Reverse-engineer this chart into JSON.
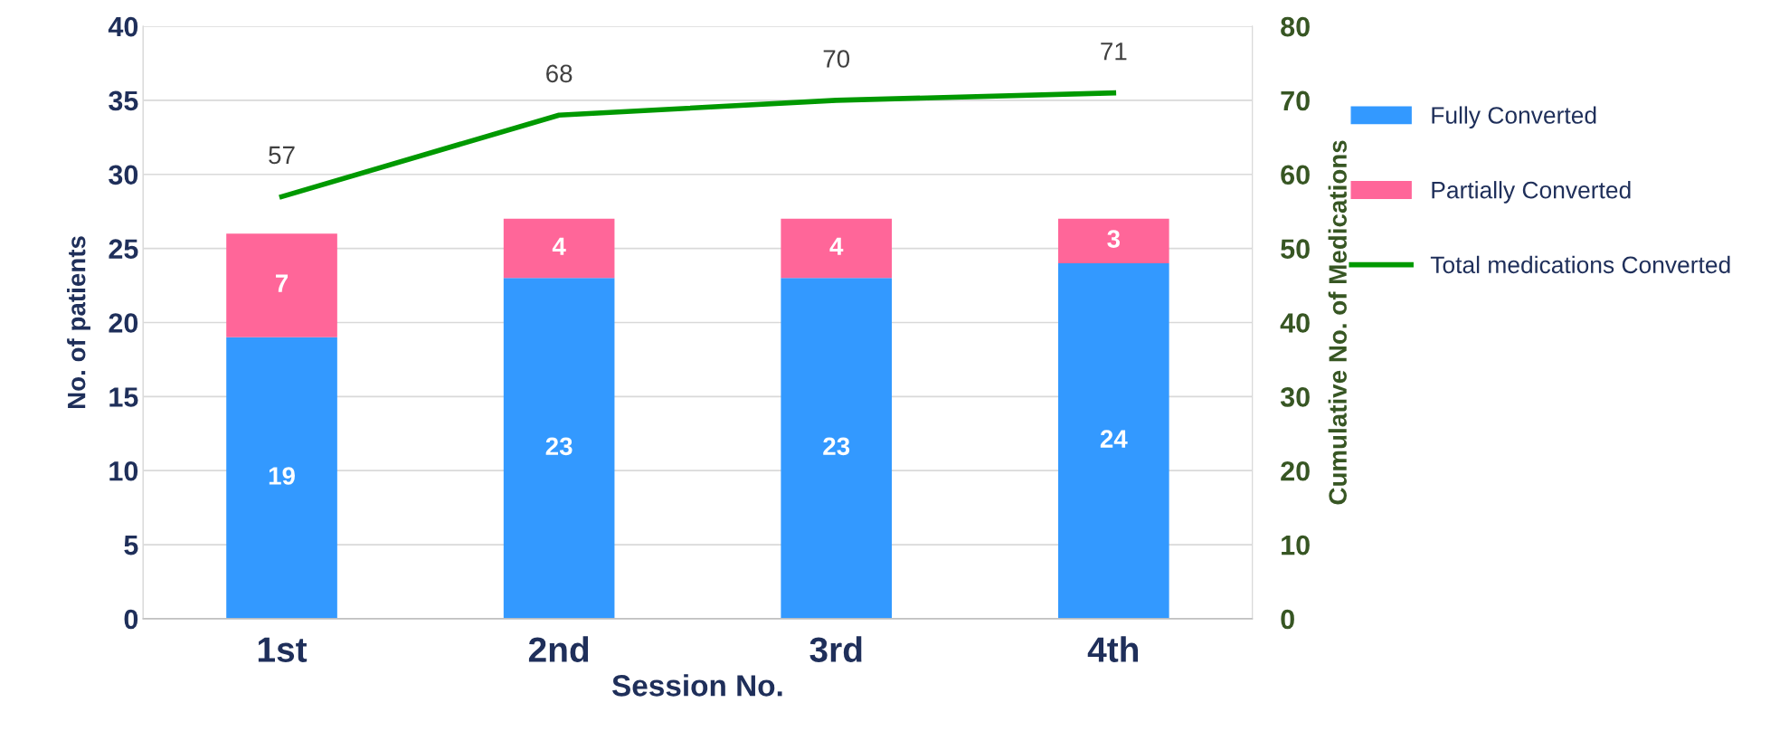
{
  "chart_data": {
    "type": "bar",
    "stacked": true,
    "xlabel": "Session No.",
    "ylabel": "No. of patients",
    "y2label": "Cumulative No. of Medications",
    "categories": [
      "1st",
      "2nd",
      "3rd",
      "4th"
    ],
    "series": [
      {
        "name": "Fully Converted",
        "color": "#3399ff",
        "values": [
          19,
          23,
          23,
          24
        ]
      },
      {
        "name": "Partially Converted",
        "color": "#ff6699",
        "values": [
          7,
          4,
          4,
          3
        ]
      },
      {
        "name": "Total medications Converted",
        "type": "line",
        "axis": "y2",
        "color": "#009900",
        "values": [
          57,
          68,
          70,
          71
        ]
      }
    ],
    "ylim": [
      0,
      40
    ],
    "yticks": [
      0,
      5,
      10,
      15,
      20,
      25,
      30,
      35,
      40
    ],
    "y2lim": [
      0,
      80
    ],
    "y2ticks": [
      0,
      10,
      20,
      30,
      40,
      50,
      60,
      70,
      80
    ],
    "grid": "y",
    "legend": "right",
    "data_labels": true,
    "marker": "none",
    "line_style": "solid"
  }
}
